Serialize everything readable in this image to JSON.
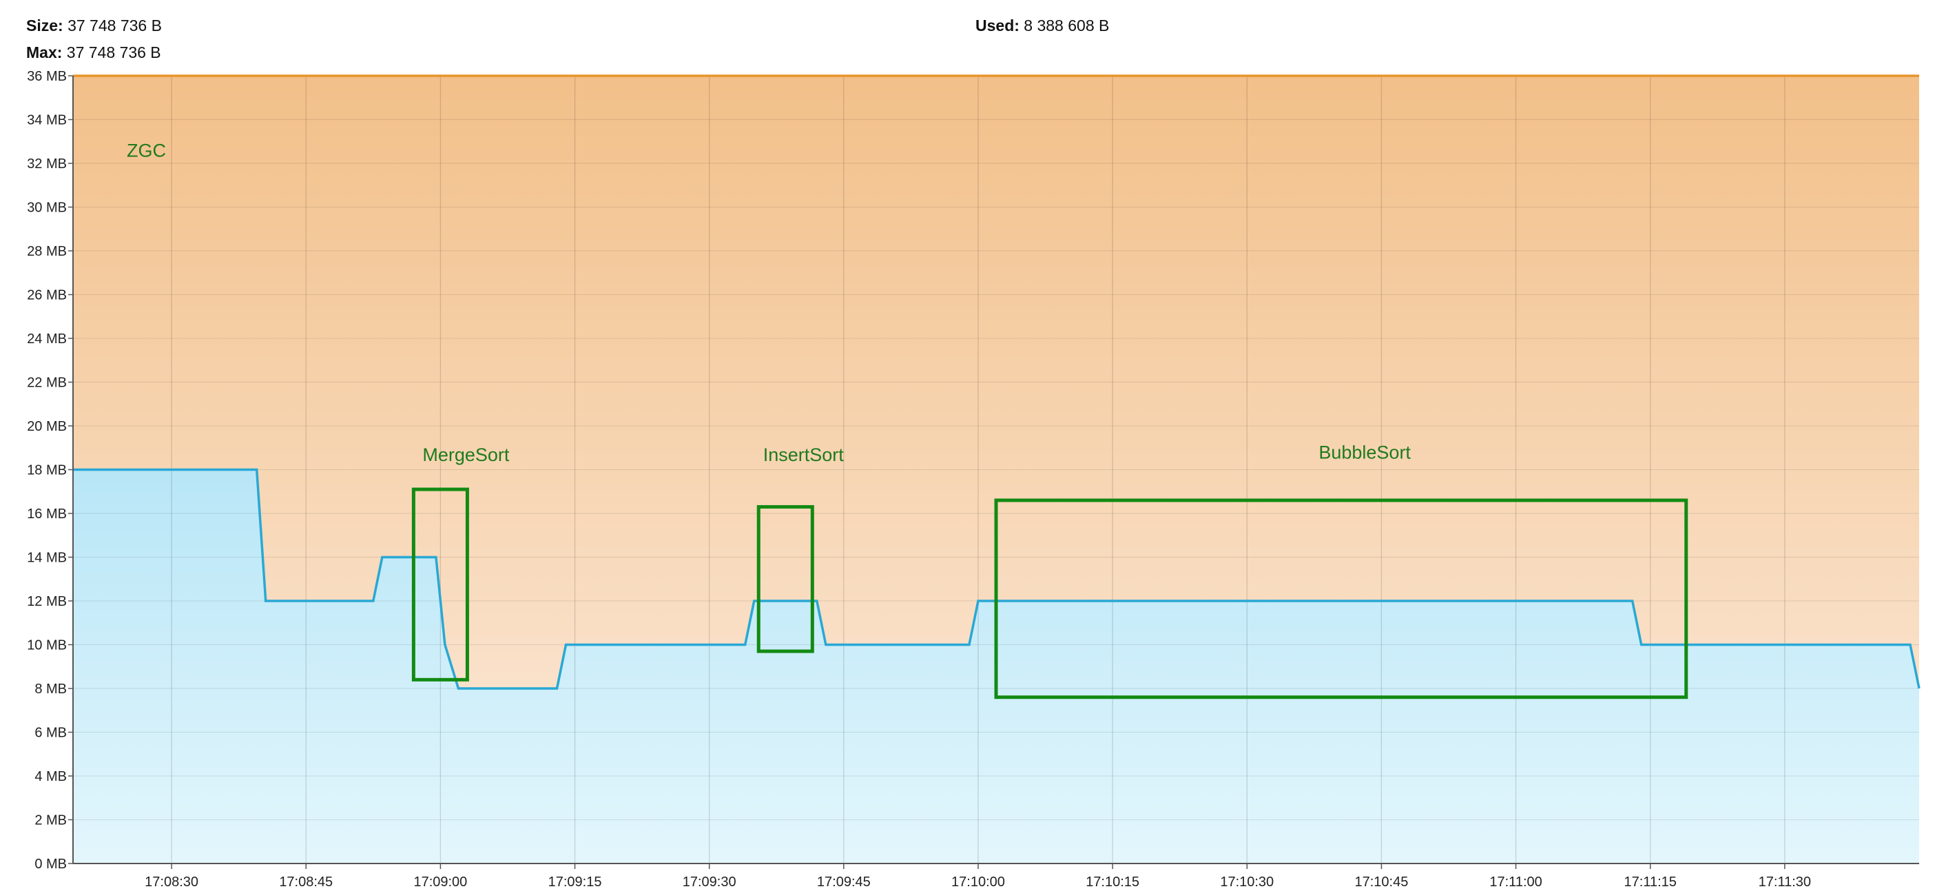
{
  "header": {
    "size_label": "Size:",
    "size_value": "37 748 736 B",
    "max_label": "Max:",
    "max_value": "37 748 736 B",
    "used_label": "Used:",
    "used_value": "8 388 608 B"
  },
  "chart_data": {
    "type": "area",
    "title": "",
    "xlabel": "",
    "ylabel": "",
    "ylim": [
      0,
      36
    ],
    "xlim": [
      "17:08:19",
      "17:11:45"
    ],
    "y_unit": "MB",
    "y_ticks": [
      "0 MB",
      "2 MB",
      "4 MB",
      "6 MB",
      "8 MB",
      "10 MB",
      "12 MB",
      "14 MB",
      "16 MB",
      "18 MB",
      "20 MB",
      "22 MB",
      "24 MB",
      "26 MB",
      "28 MB",
      "30 MB",
      "32 MB",
      "34 MB",
      "36 MB"
    ],
    "x_ticks": [
      "17:08:30",
      "17:08:45",
      "17:09:00",
      "17:09:15",
      "17:09:30",
      "17:09:45",
      "17:10:00",
      "17:10:15",
      "17:10:30",
      "17:10:45",
      "17:11:00",
      "17:11:15",
      "17:11:30"
    ],
    "grid": true,
    "legend": "none",
    "series": [
      {
        "name": "Size",
        "color": "#e8952e",
        "fill_top": "#f2c089",
        "fill_bottom": "#fcebdd",
        "points": [
          [
            "17:08:19",
            36
          ],
          [
            "17:11:45",
            36
          ]
        ]
      },
      {
        "name": "Used",
        "color": "#29a8d4",
        "fill_top": "#b8e6f7",
        "fill_bottom": "#e3f6fc",
        "points": [
          [
            "17:08:19",
            18
          ],
          [
            "17:08:39.5",
            18
          ],
          [
            "17:08:40.5",
            12
          ],
          [
            "17:08:52.5",
            12
          ],
          [
            "17:08:53.5",
            14
          ],
          [
            "17:08:59.5",
            14
          ],
          [
            "17:09:00.5",
            10
          ],
          [
            "17:09:02",
            8
          ],
          [
            "17:09:13",
            8
          ],
          [
            "17:09:14",
            10
          ],
          [
            "17:09:34",
            10
          ],
          [
            "17:09:35",
            12
          ],
          [
            "17:09:42",
            12
          ],
          [
            "17:09:43",
            10
          ],
          [
            "17:09:59",
            10
          ],
          [
            "17:10:00",
            12
          ],
          [
            "17:11:13",
            12
          ],
          [
            "17:11:14",
            10
          ],
          [
            "17:11:44",
            10
          ],
          [
            "17:11:45",
            8
          ]
        ]
      }
    ],
    "annotations": [
      {
        "text": "ZGC",
        "x": "17:08:25",
        "y": 32.3
      },
      {
        "text": "MergeSort",
        "x": "17:08:58",
        "y": 18.4
      },
      {
        "text": "InsertSort",
        "x": "17:09:36",
        "y": 18.4
      },
      {
        "text": "BubbleSort",
        "x": "17:10:38",
        "y": 18.5
      }
    ],
    "highlight_boxes": [
      {
        "label": "MergeSort",
        "x0": "17:08:57",
        "x1": "17:09:03",
        "y0": 8.4,
        "y1": 17.1
      },
      {
        "label": "InsertSort",
        "x0": "17:09:35.5",
        "x1": "17:09:41.5",
        "y0": 9.7,
        "y1": 16.3
      },
      {
        "label": "BubbleSort",
        "x0": "17:10:02",
        "x1": "17:11:19",
        "y0": 7.6,
        "y1": 16.6
      }
    ],
    "highlight_color": "#138a13"
  }
}
